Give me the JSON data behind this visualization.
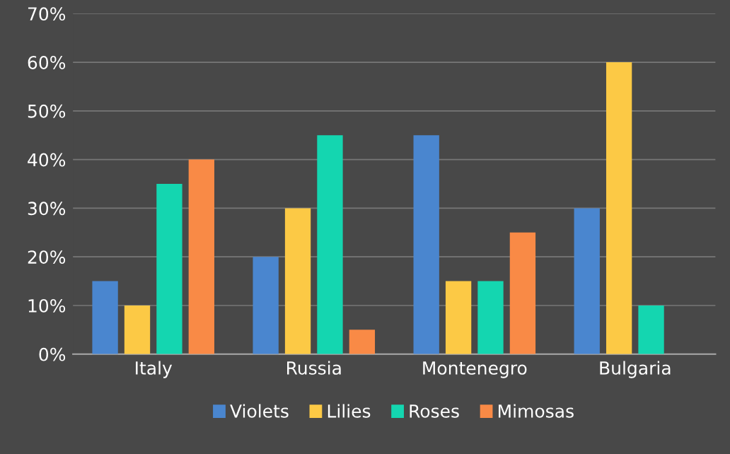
{
  "chart_data": {
    "type": "bar",
    "categories": [
      "Italy",
      "Russia",
      "Montenegro",
      "Bulgaria"
    ],
    "series": [
      {
        "name": "Violets",
        "color": "#4a86cf",
        "values": [
          15,
          20,
          45,
          30
        ]
      },
      {
        "name": "Lilies",
        "color": "#fcc945",
        "values": [
          10,
          30,
          15,
          60
        ]
      },
      {
        "name": "Roses",
        "color": "#14d6b0",
        "values": [
          35,
          45,
          15,
          10
        ]
      },
      {
        "name": "Mimosas",
        "color": "#f98a46",
        "values": [
          40,
          5,
          25,
          null
        ]
      }
    ],
    "ylim": [
      0,
      70
    ],
    "yticks": [
      {
        "value": 0,
        "label": "0%"
      },
      {
        "value": 10,
        "label": "10%"
      },
      {
        "value": 20,
        "label": "20%"
      },
      {
        "value": 30,
        "label": "30%"
      },
      {
        "value": 40,
        "label": "40%"
      },
      {
        "value": 50,
        "label": "50%"
      },
      {
        "value": 60,
        "label": "60%"
      },
      {
        "value": 70,
        "label": "70%"
      }
    ],
    "grid": "y",
    "legend": "bottom"
  }
}
